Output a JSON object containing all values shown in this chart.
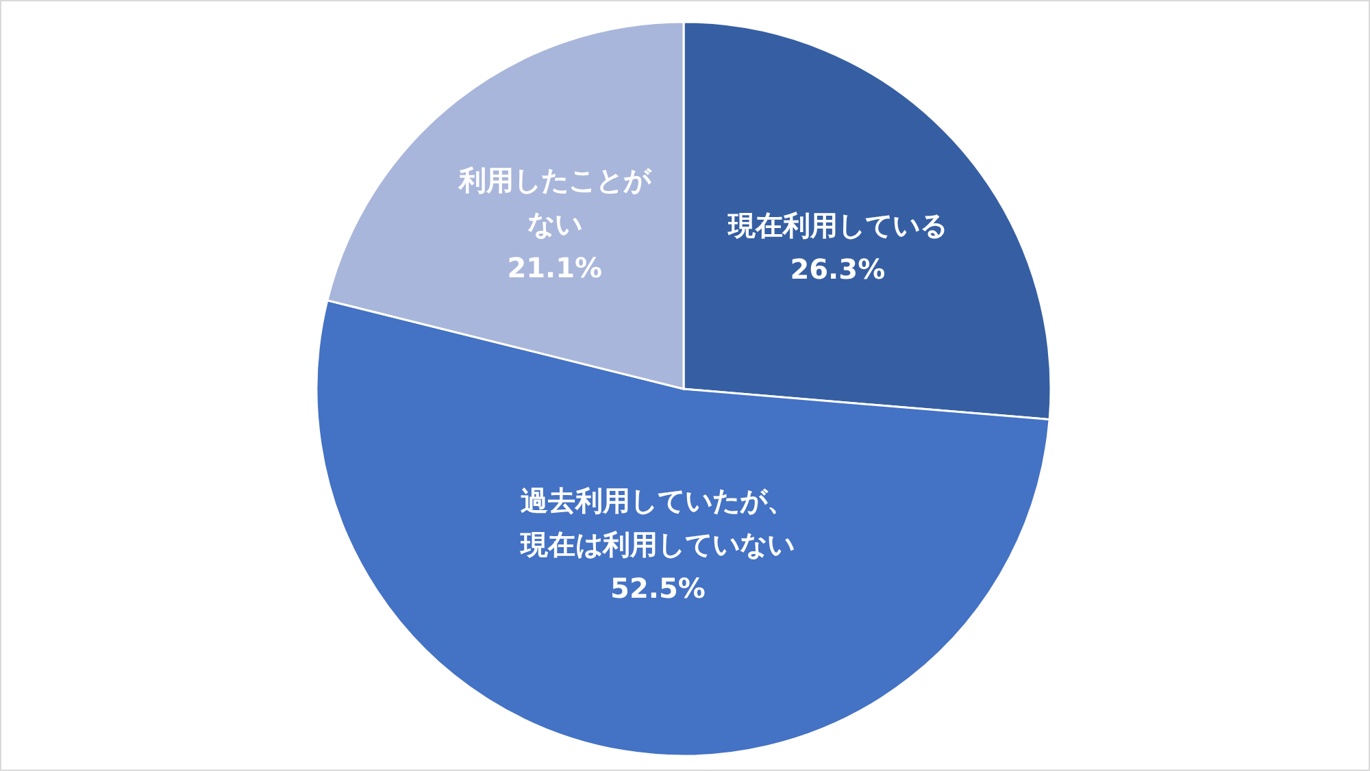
{
  "chart_data": {
    "type": "pie",
    "categories": [
      "現在利用している",
      "過去利用していたが、現在は利用していない",
      "利用したことがない"
    ],
    "values": [
      26.3,
      52.5,
      21.1
    ],
    "value_labels": [
      "26.3%",
      "52.5%",
      "21.1%"
    ],
    "colors": [
      "#365fa3",
      "#4472c4",
      "#a9b6db"
    ],
    "legend": false
  }
}
